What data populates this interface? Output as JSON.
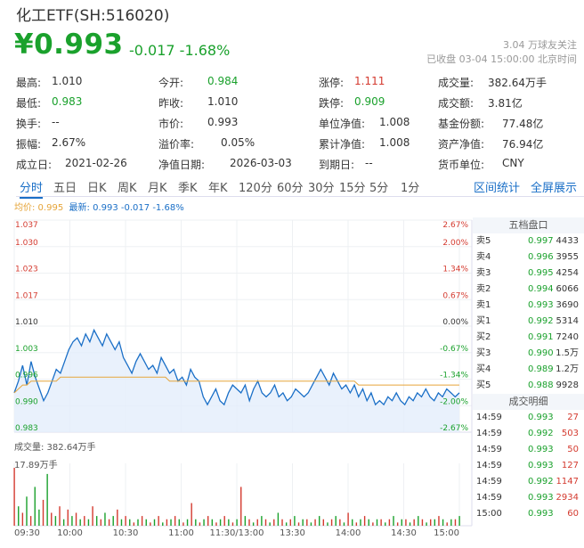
{
  "header": {
    "name": "化工ETF(SH:516020)",
    "price": "¥0.993",
    "change": "-0.017",
    "change_pct": "-1.68%",
    "followers": "3.04 万球友关注",
    "status": "已收盘 03-04 15:00:00 北京时间"
  },
  "stats": [
    [
      {
        "label": "最高:",
        "value": "1.010"
      },
      {
        "label": "今开:",
        "value": "0.984"
      },
      {
        "label": "涨停:",
        "value": "1.111"
      },
      {
        "label": "成交量:",
        "value": "382.64万手"
      }
    ],
    [
      {
        "label": "最低:",
        "value": "0.983"
      },
      {
        "label": "昨收:",
        "value": "1.010"
      },
      {
        "label": "跌停:",
        "value": "0.909"
      },
      {
        "label": "成交额:",
        "value": "3.81亿"
      }
    ],
    [
      {
        "label": "换手:",
        "value": "--"
      },
      {
        "label": "市价:",
        "value": "0.993"
      },
      {
        "label": "单位净值:",
        "value": "1.008"
      },
      {
        "label": "基金份额:",
        "value": "77.48亿"
      }
    ],
    [
      {
        "label": "振幅:",
        "value": "2.67%"
      },
      {
        "label": "溢价率:",
        "value": "0.05%"
      },
      {
        "label": "累计净值:",
        "value": "1.008"
      },
      {
        "label": "资产净值:",
        "value": "76.94亿"
      }
    ],
    [
      {
        "label": "成立日:",
        "value": "2021-02-26"
      },
      {
        "label": "净值日期:",
        "value": "2026-03-03"
      },
      {
        "label": "到期日:",
        "value": "--"
      },
      {
        "label": "货币单位:",
        "value": "CNY"
      }
    ]
  ],
  "stat_colors": {
    "0.1": "green",
    "0.2": "red",
    "1.0": "green",
    "1.2": "green"
  },
  "tabs": [
    "分时",
    "五日",
    "日K",
    "周K",
    "月K",
    "季K",
    "年K",
    "120分",
    "60分",
    "30分",
    "15分",
    "5分",
    "1分"
  ],
  "right_links": [
    "区间统计",
    "全屏展示"
  ],
  "legend": {
    "avg": "均价: 0.995",
    "latest": "最新: 0.993 -0.017 -1.68%"
  },
  "colors": {
    "up": "#d43a2f",
    "down": "#1aa12c",
    "line": "#1a6fc7",
    "avg": "#e6a53a"
  },
  "chart_data": {
    "type": "line",
    "y_ticks_left": [
      "1.037",
      "1.030",
      "1.023",
      "1.017",
      "1.010",
      "1.003",
      "0.996",
      "0.990",
      "0.983"
    ],
    "y_ticks_right": [
      "2.67%",
      "2.00%",
      "1.34%",
      "0.67%",
      "0.00%",
      "-0.67%",
      "-1.34%",
      "-2.00%",
      "-2.67%"
    ],
    "x_ticks": [
      "09:30",
      "10:00",
      "10:30",
      "11:00",
      "11:30/13:00",
      "13:30",
      "14:00",
      "14:30",
      "15:00"
    ],
    "ylim": [
      0.983,
      1.037
    ],
    "series": [
      {
        "name": "最新",
        "values": [
          0.993,
          0.996,
          1.0,
          0.995,
          1.001,
          0.997,
          0.994,
          0.991,
          0.993,
          0.996,
          0.999,
          0.998,
          1.001,
          1.004,
          1.006,
          1.007,
          1.005,
          1.008,
          1.006,
          1.009,
          1.007,
          1.005,
          1.008,
          1.006,
          1.004,
          1.006,
          1.002,
          1.0,
          0.998,
          1.001,
          1.003,
          1.001,
          0.999,
          1.0,
          0.998,
          1.002,
          1.0,
          0.998,
          0.999,
          0.996,
          0.997,
          0.995,
          0.999,
          0.997,
          0.996,
          0.992,
          0.99,
          0.992,
          0.994,
          0.991,
          0.99,
          0.993,
          0.995,
          0.994,
          0.993,
          0.995,
          0.991,
          0.994,
          0.996,
          0.993,
          0.992,
          0.993,
          0.995,
          0.992,
          0.993,
          0.991,
          0.992,
          0.994,
          0.993,
          0.992,
          0.993,
          0.995,
          0.997,
          0.999,
          0.997,
          0.995,
          0.998,
          0.996,
          0.994,
          0.995,
          0.993,
          0.995,
          0.992,
          0.994,
          0.991,
          0.993,
          0.99,
          0.991,
          0.99,
          0.992,
          0.991,
          0.993,
          0.991,
          0.99,
          0.992,
          0.991,
          0.993,
          0.992,
          0.994,
          0.992,
          0.991,
          0.993,
          0.992,
          0.994,
          0.993,
          0.992,
          0.993
        ]
      },
      {
        "name": "均价",
        "values": [
          0.993,
          0.994,
          0.995,
          0.995,
          0.996,
          0.996,
          0.996,
          0.996,
          0.996,
          0.996,
          0.996,
          0.997,
          0.997,
          0.997,
          0.997,
          0.997,
          0.997,
          0.997,
          0.997,
          0.997,
          0.997,
          0.997,
          0.997,
          0.997,
          0.997,
          0.997,
          0.997,
          0.997,
          0.997,
          0.997,
          0.997,
          0.997,
          0.997,
          0.997,
          0.997,
          0.997,
          0.997,
          0.996,
          0.996,
          0.996,
          0.996,
          0.996,
          0.996,
          0.996,
          0.996,
          0.996,
          0.996,
          0.996,
          0.996,
          0.996,
          0.996,
          0.996,
          0.996,
          0.996,
          0.996,
          0.996,
          0.996,
          0.996,
          0.996,
          0.996,
          0.996,
          0.996,
          0.996,
          0.996,
          0.996,
          0.996,
          0.996,
          0.996,
          0.996,
          0.996,
          0.996,
          0.996,
          0.996,
          0.996,
          0.996,
          0.996,
          0.996,
          0.996,
          0.996,
          0.996,
          0.996,
          0.996,
          0.995,
          0.995,
          0.995,
          0.995,
          0.995,
          0.995,
          0.995,
          0.995,
          0.995,
          0.995,
          0.995,
          0.995,
          0.995,
          0.995,
          0.995,
          0.995,
          0.995,
          0.995,
          0.995,
          0.995,
          0.995,
          0.995,
          0.995,
          0.995,
          0.995
        ]
      }
    ]
  },
  "volume": {
    "label": "成交量: 382.64万手",
    "max_label": "17.89万手",
    "values": [
      17.9,
      6,
      4,
      9,
      3,
      12,
      5,
      8,
      16,
      4,
      3,
      6,
      2,
      5,
      3,
      4,
      2,
      3,
      2,
      6,
      3,
      2,
      4,
      2,
      3,
      5,
      2,
      3,
      2,
      1,
      2,
      3,
      2,
      1,
      2,
      3,
      1,
      2,
      2,
      3,
      2,
      1,
      2,
      7,
      2,
      1,
      2,
      3,
      2,
      1,
      2,
      3,
      2,
      1,
      2,
      12,
      3,
      2,
      1,
      2,
      3,
      2,
      1,
      2,
      4,
      2,
      1,
      2,
      3,
      1,
      2,
      2,
      1,
      2,
      3,
      2,
      1,
      2,
      3,
      2,
      1,
      4,
      2,
      1,
      2,
      3,
      2,
      1,
      2,
      2,
      1,
      2,
      3,
      1,
      2,
      2,
      1,
      2,
      3,
      2,
      1,
      2,
      2,
      3,
      2,
      1,
      2,
      2,
      3
    ],
    "up": [
      true,
      false,
      true,
      false,
      true,
      false,
      false,
      true,
      false,
      true,
      false,
      true,
      false,
      true,
      false,
      true,
      false,
      true,
      false,
      true,
      false,
      true,
      false,
      true,
      false,
      true,
      false,
      true,
      false,
      true,
      false,
      true,
      false,
      true,
      false,
      true,
      false,
      true,
      false,
      true,
      false,
      true,
      false,
      true,
      false,
      true,
      false,
      true,
      false,
      true,
      false,
      true,
      false,
      true,
      false,
      true,
      false,
      true,
      false,
      true,
      false,
      true,
      false,
      true,
      false,
      true,
      false,
      true,
      false,
      true,
      false,
      true,
      false,
      true,
      false,
      true,
      false,
      true,
      false,
      true,
      false,
      true,
      false,
      true,
      false,
      true,
      false,
      true,
      false,
      true,
      false,
      true,
      false,
      true,
      false,
      true,
      false,
      true,
      false,
      true,
      false,
      true,
      false,
      true,
      false,
      true,
      false,
      true,
      false
    ]
  },
  "order_book": {
    "title": "五档盘口",
    "sell": [
      {
        "label": "卖5",
        "price": "0.997",
        "vol": "4433"
      },
      {
        "label": "卖4",
        "price": "0.996",
        "vol": "3955"
      },
      {
        "label": "卖3",
        "price": "0.995",
        "vol": "4254"
      },
      {
        "label": "卖2",
        "price": "0.994",
        "vol": "6066"
      },
      {
        "label": "卖1",
        "price": "0.993",
        "vol": "3690"
      }
    ],
    "buy": [
      {
        "label": "买1",
        "price": "0.992",
        "vol": "5314"
      },
      {
        "label": "买2",
        "price": "0.991",
        "vol": "7240"
      },
      {
        "label": "买3",
        "price": "0.990",
        "vol": "1.5万"
      },
      {
        "label": "买4",
        "price": "0.989",
        "vol": "1.2万"
      },
      {
        "label": "买5",
        "price": "0.988",
        "vol": "9928"
      }
    ]
  },
  "trades": {
    "title": "成交明细",
    "rows": [
      {
        "time": "14:59",
        "price": "0.993",
        "vol": "27"
      },
      {
        "time": "14:59",
        "price": "0.992",
        "vol": "503"
      },
      {
        "time": "14:59",
        "price": "0.993",
        "vol": "50"
      },
      {
        "time": "14:59",
        "price": "0.993",
        "vol": "127"
      },
      {
        "time": "14:59",
        "price": "0.992",
        "vol": "1147"
      },
      {
        "time": "14:59",
        "price": "0.993",
        "vol": "2934"
      },
      {
        "time": "15:00",
        "price": "0.993",
        "vol": "60"
      }
    ]
  }
}
